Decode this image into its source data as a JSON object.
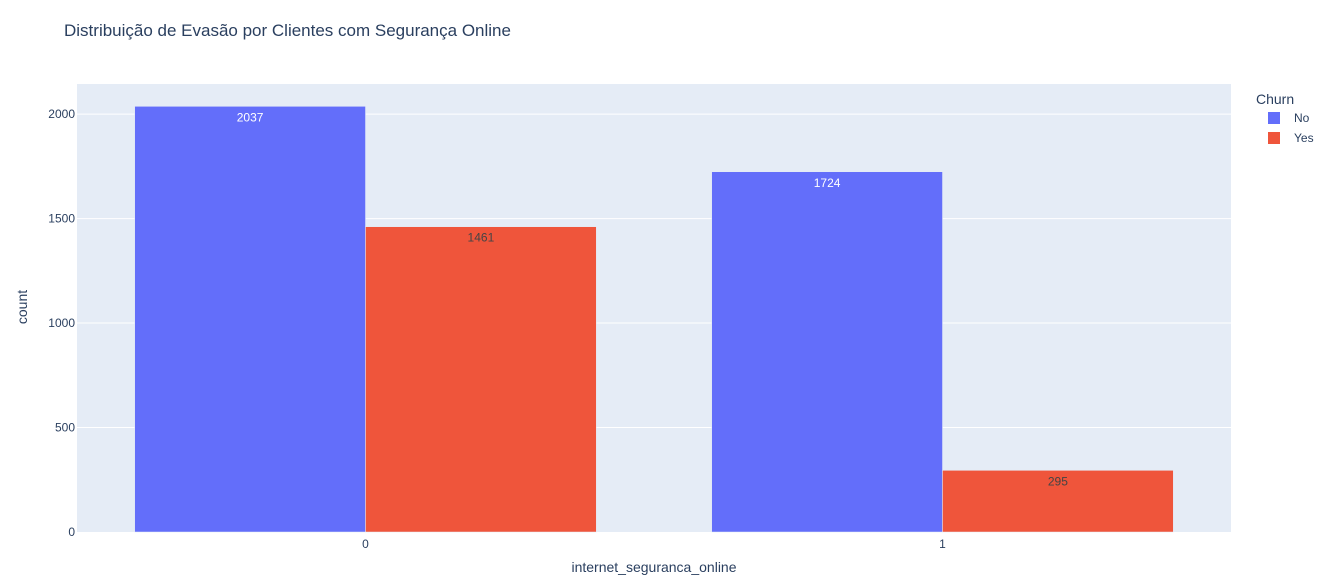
{
  "chart_data": {
    "type": "bar",
    "barmode": "group",
    "title": "Distribuição de Evasão por Clientes com Segurança Online",
    "xlabel": "internet_seguranca_online",
    "ylabel": "count",
    "categories": [
      "0",
      "1"
    ],
    "series": [
      {
        "name": "No",
        "values": [
          2037,
          1724
        ],
        "color": "#636efa",
        "label_color": "#ffffff"
      },
      {
        "name": "Yes",
        "values": [
          1461,
          295
        ],
        "color": "#ef553b",
        "label_color": "#444444"
      }
    ],
    "ylim": [
      0,
      2144
    ],
    "yticks": [
      0,
      500,
      1000,
      1500,
      2000
    ],
    "grid": true,
    "legend": {
      "title": "Churn",
      "placement": "top-right"
    },
    "colors": {
      "plot_background": "#e5ecf6",
      "paper_background": "#ffffff",
      "grid": "#ffffff",
      "text": "#2a3f5f"
    }
  }
}
